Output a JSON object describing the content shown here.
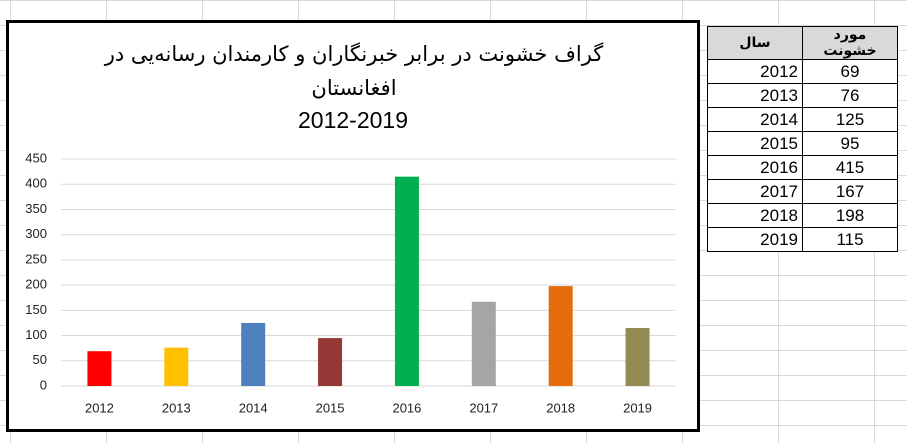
{
  "chart_data": {
    "type": "bar",
    "title": "گراف خشونت در برابر خبرنگاران و کارمندان رسانه‌یی در افغانستان",
    "subtitle": "2012-2019",
    "categories": [
      "2012",
      "2013",
      "2014",
      "2015",
      "2016",
      "2017",
      "2018",
      "2019"
    ],
    "values": [
      69,
      76,
      125,
      95,
      415,
      167,
      198,
      115
    ],
    "colors": [
      "#ff0000",
      "#ffc000",
      "#4f81bd",
      "#953735",
      "#00b050",
      "#a5a5a5",
      "#e46c0a",
      "#948a54"
    ],
    "ylim": [
      0,
      450
    ],
    "yticks": [
      0,
      50,
      100,
      150,
      200,
      250,
      300,
      350,
      400,
      450
    ],
    "grid": true
  },
  "table": {
    "headers": [
      "سال",
      "مورد خشونت"
    ]
  }
}
